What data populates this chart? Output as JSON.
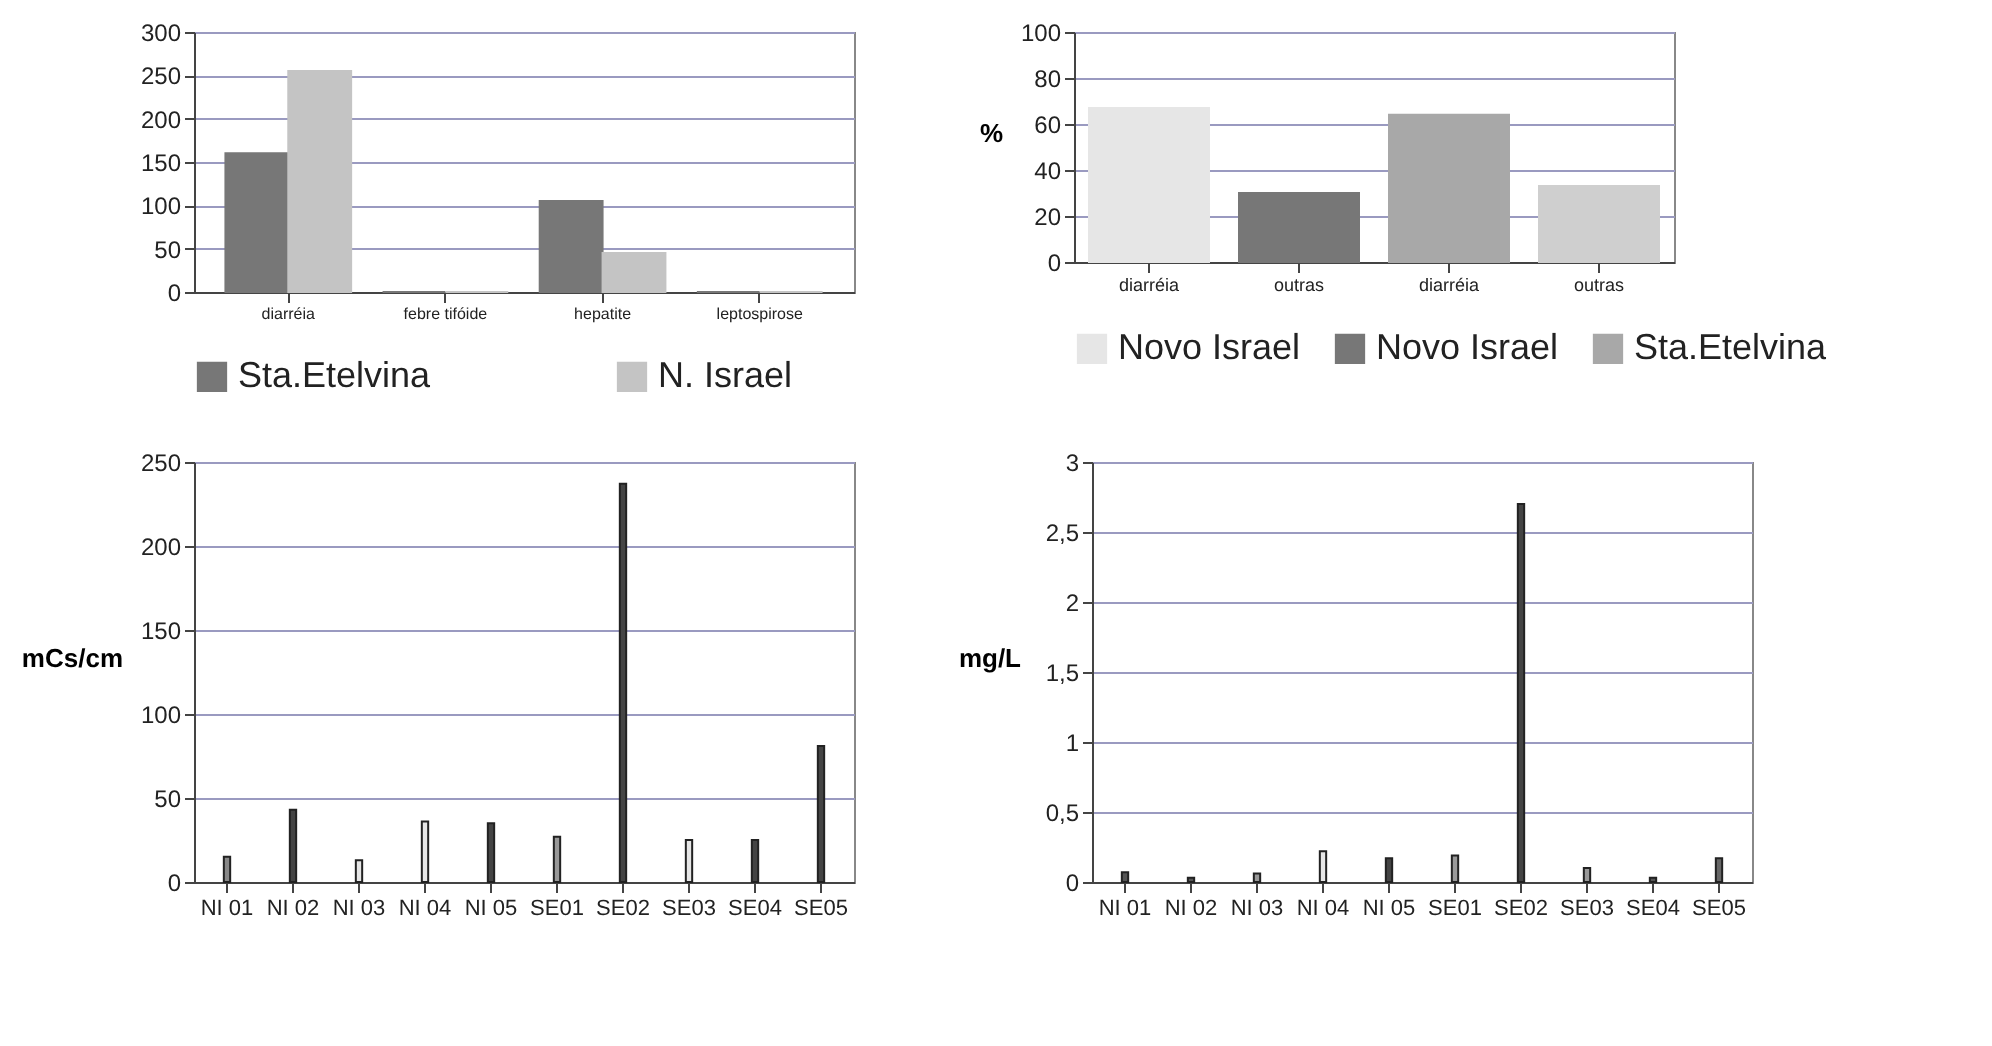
{
  "chart_data": [
    {
      "type": "bar",
      "categories": [
        "diarréia",
        "febre tifóide",
        "hepatite",
        "leptospirose"
      ],
      "series": [
        {
          "name": "Sta.Etelvina",
          "color": "#777777",
          "values": [
            160,
            0,
            105,
            0
          ]
        },
        {
          "name": "N. Israel",
          "color": "#c4c4c4",
          "values": [
            255,
            0,
            45,
            0
          ]
        }
      ],
      "ylim": [
        0,
        300
      ],
      "yticks": [
        0,
        50,
        100,
        150,
        200,
        250,
        300
      ],
      "grid": "y",
      "legend": "bottom"
    },
    {
      "type": "bar",
      "ylabel": "%",
      "categories": [
        "diarréia",
        "outras",
        "diarréia",
        "outras"
      ],
      "series": [
        {
          "name": "Novo Israel",
          "color": "#e6e6e6",
          "values": [
            67,
            null,
            null,
            null
          ]
        },
        {
          "name": "Novo Israel",
          "color": "#777777",
          "values": [
            null,
            30,
            null,
            null
          ]
        },
        {
          "name": "Sta.Etelvina",
          "color": "#a8a8a8",
          "values": [
            null,
            null,
            64,
            null
          ]
        },
        {
          "color": "#cfcfcf",
          "values": [
            null,
            null,
            null,
            33
          ]
        }
      ],
      "ylim": [
        0,
        100
      ],
      "yticks": [
        0,
        20,
        40,
        60,
        80,
        100
      ],
      "grid": "y",
      "legend": "bottom"
    },
    {
      "type": "bar",
      "ylabel": "mCs/cm",
      "categories": [
        "NI 01",
        "NI 02",
        "NI 03",
        "NI 04",
        "NI 05",
        "SE01",
        "SE02",
        "SE03",
        "SE04",
        "SE05"
      ],
      "values": [
        15,
        43,
        13,
        36,
        35,
        27,
        237,
        25,
        25,
        81
      ],
      "colors": [
        "#888888",
        "#444444",
        "#e6e6e6",
        "#e6e6e6",
        "#444444",
        "#999999",
        "#444444",
        "#e6e6e6",
        "#444444",
        "#444444"
      ],
      "ylim": [
        0,
        250
      ],
      "yticks": [
        0,
        50,
        100,
        150,
        200,
        250
      ],
      "grid": "y"
    },
    {
      "type": "bar",
      "ylabel": "mg/L",
      "categories": [
        "NI 01",
        "NI 02",
        "NI 03",
        "NI 04",
        "NI 05",
        "SE01",
        "SE02",
        "SE03",
        "SE04",
        "SE05"
      ],
      "values": [
        0.07,
        0.03,
        0.06,
        0.22,
        0.17,
        0.19,
        2.7,
        0.1,
        0.03,
        0.17
      ],
      "colors": [
        "#555555",
        "#555555",
        "#999999",
        "#e6e6e6",
        "#444444",
        "#999999",
        "#444444",
        "#999999",
        "#555555",
        "#666666"
      ],
      "ylim": [
        0,
        3
      ],
      "yticks": [
        0,
        {
          "value": 0.5,
          "label": "0,5"
        },
        1,
        {
          "value": 1.5,
          "label": "1,5"
        },
        2,
        {
          "value": 2.5,
          "label": "2,5"
        },
        3
      ],
      "grid": "y"
    }
  ]
}
